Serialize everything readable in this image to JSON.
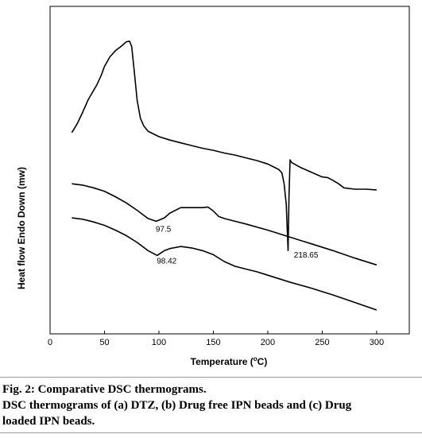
{
  "chart_data": {
    "type": "line",
    "xlabel": "Temperature (",
    "xlabel_sup": "o",
    "xlabel_unit": "C)",
    "ylabel": "Heat flow Endo Down (mw)",
    "xlim": [
      0,
      330
    ],
    "x_ticks": [
      0,
      50,
      100,
      150,
      200,
      250,
      300
    ],
    "yaxis_ticks": "none",
    "grid": false,
    "legend": "none",
    "line_color": "#000000",
    "series": [
      {
        "x": [
          20,
          25,
          30,
          35,
          40,
          43,
          47,
          50,
          55,
          60,
          65,
          70,
          73,
          75,
          77,
          80,
          83,
          86,
          90,
          95,
          100,
          110,
          120,
          130,
          140,
          150,
          160,
          170,
          180,
          190,
          200,
          210,
          213,
          215,
          217,
          218.65,
          219.5,
          220.5,
          222,
          230,
          240,
          250,
          255,
          260,
          265,
          270,
          280,
          290,
          300
        ],
        "y": [
          19.5,
          20.8,
          22.5,
          24.3,
          25.7,
          26.5,
          27.9,
          29.2,
          30.6,
          31.5,
          32.1,
          32.8,
          32.9,
          32.1,
          29.0,
          24.2,
          21.6,
          20.5,
          19.7,
          19.3,
          18.9,
          18.4,
          18.0,
          17.6,
          17.2,
          16.9,
          16.5,
          16.2,
          15.8,
          15.4,
          14.9,
          14.1,
          13.6,
          12.0,
          9.0,
          2.2,
          10.0,
          15.5,
          15.1,
          14.4,
          13.7,
          13.0,
          12.9,
          12.5,
          12.0,
          11.4,
          11.2,
          11.2,
          11.1
        ]
      },
      {
        "x": [
          20,
          30,
          40,
          50,
          60,
          70,
          80,
          90,
          97.5,
          105,
          110,
          120,
          130,
          140,
          145,
          150,
          155,
          160,
          170,
          180,
          200,
          220,
          240,
          260,
          280,
          300
        ],
        "y": [
          12.0,
          11.8,
          11.4,
          10.9,
          10.1,
          9.2,
          8.1,
          6.9,
          6.5,
          7.0,
          7.7,
          8.5,
          8.5,
          8.5,
          8.6,
          8.0,
          7.2,
          6.9,
          6.5,
          6.1,
          5.2,
          4.2,
          3.2,
          2.2,
          1.1,
          0.1
        ]
      },
      {
        "x": [
          20,
          30,
          40,
          50,
          60,
          70,
          80,
          90,
          98.42,
          105,
          110,
          120,
          130,
          140,
          150,
          160,
          170,
          180,
          190,
          200,
          220,
          240,
          260,
          280,
          300
        ],
        "y": [
          7.0,
          6.8,
          6.4,
          5.9,
          5.2,
          4.4,
          3.4,
          2.2,
          1.5,
          2.2,
          2.5,
          2.8,
          2.6,
          2.2,
          1.6,
          0.6,
          -0.1,
          -0.5,
          -0.9,
          -1.4,
          -2.4,
          -3.3,
          -4.3,
          -5.4,
          -6.5
        ]
      }
    ],
    "annotations": [
      {
        "text": "218.65",
        "x": 224,
        "y": 1.2
      },
      {
        "text": "97.5",
        "x": 97,
        "y": 5.0
      },
      {
        "text": "98.42",
        "x": 98,
        "y": 0.3
      }
    ]
  },
  "caption": {
    "line1": "Fig. 2: Comparative DSC thermograms.",
    "line2": "DSC thermograms of (a) DTZ, (b) Drug free IPN beads and (c) Drug",
    "line3": "loaded IPN beads."
  }
}
